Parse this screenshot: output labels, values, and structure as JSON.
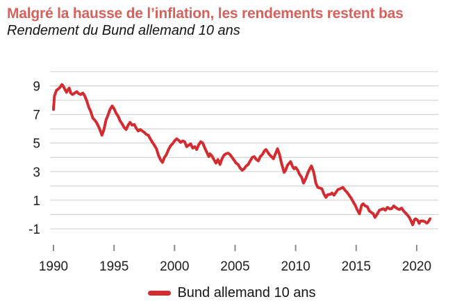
{
  "colors": {
    "title": "#d4615b",
    "line": "#d22b30",
    "grid": "#cccccc",
    "tick": "#8c8c8c",
    "text": "#1c1c1c"
  },
  "legend": {
    "label": "Bund allemand 10 ans"
  },
  "chart_data": {
    "type": "line",
    "title": "Malgré la hausse de l’inflation, les rendements restent bas",
    "subtitle": "Rendement du Bund allemand 10 ans",
    "xlabel": "",
    "ylabel": "",
    "xlim": [
      1989.7,
      2021.8
    ],
    "ylim": [
      -1,
      10
    ],
    "grid": true,
    "legend_position": "bottom-center",
    "x_ticks": [
      1990,
      1995,
      2000,
      2005,
      2010,
      2015,
      2020
    ],
    "y_tick_labels": [
      9,
      7,
      5,
      3,
      1,
      -1
    ],
    "gridline_values": [
      10,
      9,
      8,
      7,
      6,
      5,
      4,
      3,
      2,
      1,
      0,
      -1
    ],
    "series": [
      {
        "name": "Bund allemand 10 ans",
        "color": "#d22b30",
        "points": [
          [
            1990.0,
            7.35
          ],
          [
            1990.08,
            8.3
          ],
          [
            1990.25,
            8.7
          ],
          [
            1990.42,
            8.8
          ],
          [
            1990.58,
            8.95
          ],
          [
            1990.7,
            9.1
          ],
          [
            1990.83,
            8.95
          ],
          [
            1990.92,
            8.8
          ],
          [
            1991.08,
            8.55
          ],
          [
            1991.17,
            8.7
          ],
          [
            1991.3,
            8.85
          ],
          [
            1991.42,
            8.5
          ],
          [
            1991.58,
            8.4
          ],
          [
            1991.75,
            8.5
          ],
          [
            1991.92,
            8.6
          ],
          [
            1992.08,
            8.45
          ],
          [
            1992.25,
            8.4
          ],
          [
            1992.42,
            8.5
          ],
          [
            1992.58,
            8.3
          ],
          [
            1992.75,
            7.95
          ],
          [
            1992.92,
            7.5
          ],
          [
            1993.08,
            7.2
          ],
          [
            1993.25,
            6.75
          ],
          [
            1993.42,
            6.6
          ],
          [
            1993.58,
            6.4
          ],
          [
            1993.75,
            6.1
          ],
          [
            1993.92,
            5.75
          ],
          [
            1994.0,
            5.55
          ],
          [
            1994.17,
            5.95
          ],
          [
            1994.33,
            6.6
          ],
          [
            1994.5,
            6.95
          ],
          [
            1994.67,
            7.35
          ],
          [
            1994.85,
            7.6
          ],
          [
            1995.0,
            7.4
          ],
          [
            1995.17,
            7.1
          ],
          [
            1995.33,
            6.9
          ],
          [
            1995.5,
            6.55
          ],
          [
            1995.67,
            6.35
          ],
          [
            1995.83,
            6.1
          ],
          [
            1996.0,
            5.95
          ],
          [
            1996.17,
            6.25
          ],
          [
            1996.33,
            6.45
          ],
          [
            1996.5,
            6.25
          ],
          [
            1996.67,
            6.3
          ],
          [
            1996.83,
            6.05
          ],
          [
            1997.0,
            5.85
          ],
          [
            1997.17,
            5.95
          ],
          [
            1997.33,
            5.85
          ],
          [
            1997.5,
            5.75
          ],
          [
            1997.67,
            5.6
          ],
          [
            1997.83,
            5.55
          ],
          [
            1998.0,
            5.3
          ],
          [
            1998.17,
            5.05
          ],
          [
            1998.33,
            4.85
          ],
          [
            1998.5,
            4.6
          ],
          [
            1998.67,
            4.15
          ],
          [
            1998.83,
            3.85
          ],
          [
            1999.0,
            3.65
          ],
          [
            1999.17,
            4.0
          ],
          [
            1999.33,
            4.2
          ],
          [
            1999.5,
            4.55
          ],
          [
            1999.67,
            4.8
          ],
          [
            1999.83,
            4.95
          ],
          [
            2000.0,
            5.15
          ],
          [
            2000.17,
            5.3
          ],
          [
            2000.33,
            5.2
          ],
          [
            2000.5,
            5.05
          ],
          [
            2000.67,
            5.15
          ],
          [
            2000.83,
            5.1
          ],
          [
            2001.0,
            4.75
          ],
          [
            2001.17,
            4.85
          ],
          [
            2001.33,
            4.95
          ],
          [
            2001.5,
            4.65
          ],
          [
            2001.67,
            4.75
          ],
          [
            2001.83,
            4.55
          ],
          [
            2002.0,
            4.9
          ],
          [
            2002.17,
            5.1
          ],
          [
            2002.33,
            5.0
          ],
          [
            2002.5,
            4.65
          ],
          [
            2002.67,
            4.35
          ],
          [
            2002.83,
            4.05
          ],
          [
            2002.92,
            4.25
          ],
          [
            2003.08,
            4.1
          ],
          [
            2003.25,
            3.85
          ],
          [
            2003.42,
            3.6
          ],
          [
            2003.58,
            3.85
          ],
          [
            2003.75,
            3.5
          ],
          [
            2003.92,
            3.9
          ],
          [
            2004.08,
            4.15
          ],
          [
            2004.25,
            4.25
          ],
          [
            2004.42,
            4.3
          ],
          [
            2004.58,
            4.2
          ],
          [
            2004.75,
            4.0
          ],
          [
            2004.92,
            3.8
          ],
          [
            2005.08,
            3.6
          ],
          [
            2005.25,
            3.5
          ],
          [
            2005.42,
            3.25
          ],
          [
            2005.58,
            3.1
          ],
          [
            2005.75,
            3.2
          ],
          [
            2005.92,
            3.4
          ],
          [
            2006.08,
            3.5
          ],
          [
            2006.25,
            3.75
          ],
          [
            2006.42,
            4.0
          ],
          [
            2006.58,
            4.05
          ],
          [
            2006.75,
            3.85
          ],
          [
            2006.92,
            3.75
          ],
          [
            2007.08,
            4.05
          ],
          [
            2007.25,
            4.2
          ],
          [
            2007.42,
            4.45
          ],
          [
            2007.55,
            4.55
          ],
          [
            2007.67,
            4.4
          ],
          [
            2007.83,
            4.2
          ],
          [
            2008.0,
            4.05
          ],
          [
            2008.17,
            3.9
          ],
          [
            2008.33,
            4.25
          ],
          [
            2008.5,
            4.6
          ],
          [
            2008.67,
            4.2
          ],
          [
            2008.83,
            3.6
          ],
          [
            2009.05,
            2.95
          ],
          [
            2009.17,
            3.1
          ],
          [
            2009.33,
            3.45
          ],
          [
            2009.58,
            3.7
          ],
          [
            2009.75,
            3.35
          ],
          [
            2009.87,
            3.2
          ],
          [
            2010.0,
            3.3
          ],
          [
            2010.17,
            3.1
          ],
          [
            2010.33,
            2.8
          ],
          [
            2010.5,
            2.6
          ],
          [
            2010.65,
            2.2
          ],
          [
            2010.83,
            2.5
          ],
          [
            2011.0,
            2.9
          ],
          [
            2011.17,
            3.2
          ],
          [
            2011.3,
            3.4
          ],
          [
            2011.5,
            2.95
          ],
          [
            2011.67,
            2.2
          ],
          [
            2011.83,
            1.9
          ],
          [
            2012.0,
            1.85
          ],
          [
            2012.17,
            1.8
          ],
          [
            2012.33,
            1.45
          ],
          [
            2012.5,
            1.2
          ],
          [
            2012.67,
            1.4
          ],
          [
            2012.83,
            1.4
          ],
          [
            2013.0,
            1.5
          ],
          [
            2013.17,
            1.35
          ],
          [
            2013.33,
            1.55
          ],
          [
            2013.5,
            1.75
          ],
          [
            2013.67,
            1.8
          ],
          [
            2013.9,
            1.9
          ],
          [
            2014.08,
            1.7
          ],
          [
            2014.25,
            1.55
          ],
          [
            2014.42,
            1.35
          ],
          [
            2014.58,
            1.15
          ],
          [
            2014.75,
            0.9
          ],
          [
            2014.92,
            0.65
          ],
          [
            2015.08,
            0.35
          ],
          [
            2015.27,
            0.05
          ],
          [
            2015.45,
            0.65
          ],
          [
            2015.58,
            0.75
          ],
          [
            2015.75,
            0.6
          ],
          [
            2015.92,
            0.55
          ],
          [
            2016.08,
            0.25
          ],
          [
            2016.25,
            0.15
          ],
          [
            2016.42,
            0.05
          ],
          [
            2016.55,
            -0.2
          ],
          [
            2016.75,
            0.05
          ],
          [
            2016.92,
            0.3
          ],
          [
            2017.08,
            0.35
          ],
          [
            2017.25,
            0.4
          ],
          [
            2017.42,
            0.3
          ],
          [
            2017.58,
            0.5
          ],
          [
            2017.75,
            0.4
          ],
          [
            2017.92,
            0.4
          ],
          [
            2018.1,
            0.6
          ],
          [
            2018.25,
            0.5
          ],
          [
            2018.42,
            0.4
          ],
          [
            2018.58,
            0.35
          ],
          [
            2018.75,
            0.45
          ],
          [
            2018.92,
            0.25
          ],
          [
            2019.08,
            0.1
          ],
          [
            2019.25,
            -0.05
          ],
          [
            2019.42,
            -0.25
          ],
          [
            2019.58,
            -0.55
          ],
          [
            2019.67,
            -0.72
          ],
          [
            2019.83,
            -0.35
          ],
          [
            2019.92,
            -0.3
          ],
          [
            2020.08,
            -0.4
          ],
          [
            2020.2,
            -0.62
          ],
          [
            2020.33,
            -0.45
          ],
          [
            2020.5,
            -0.45
          ],
          [
            2020.67,
            -0.5
          ],
          [
            2020.83,
            -0.6
          ],
          [
            2020.92,
            -0.55
          ],
          [
            2021.0,
            -0.45
          ],
          [
            2021.1,
            -0.3
          ]
        ]
      }
    ]
  }
}
